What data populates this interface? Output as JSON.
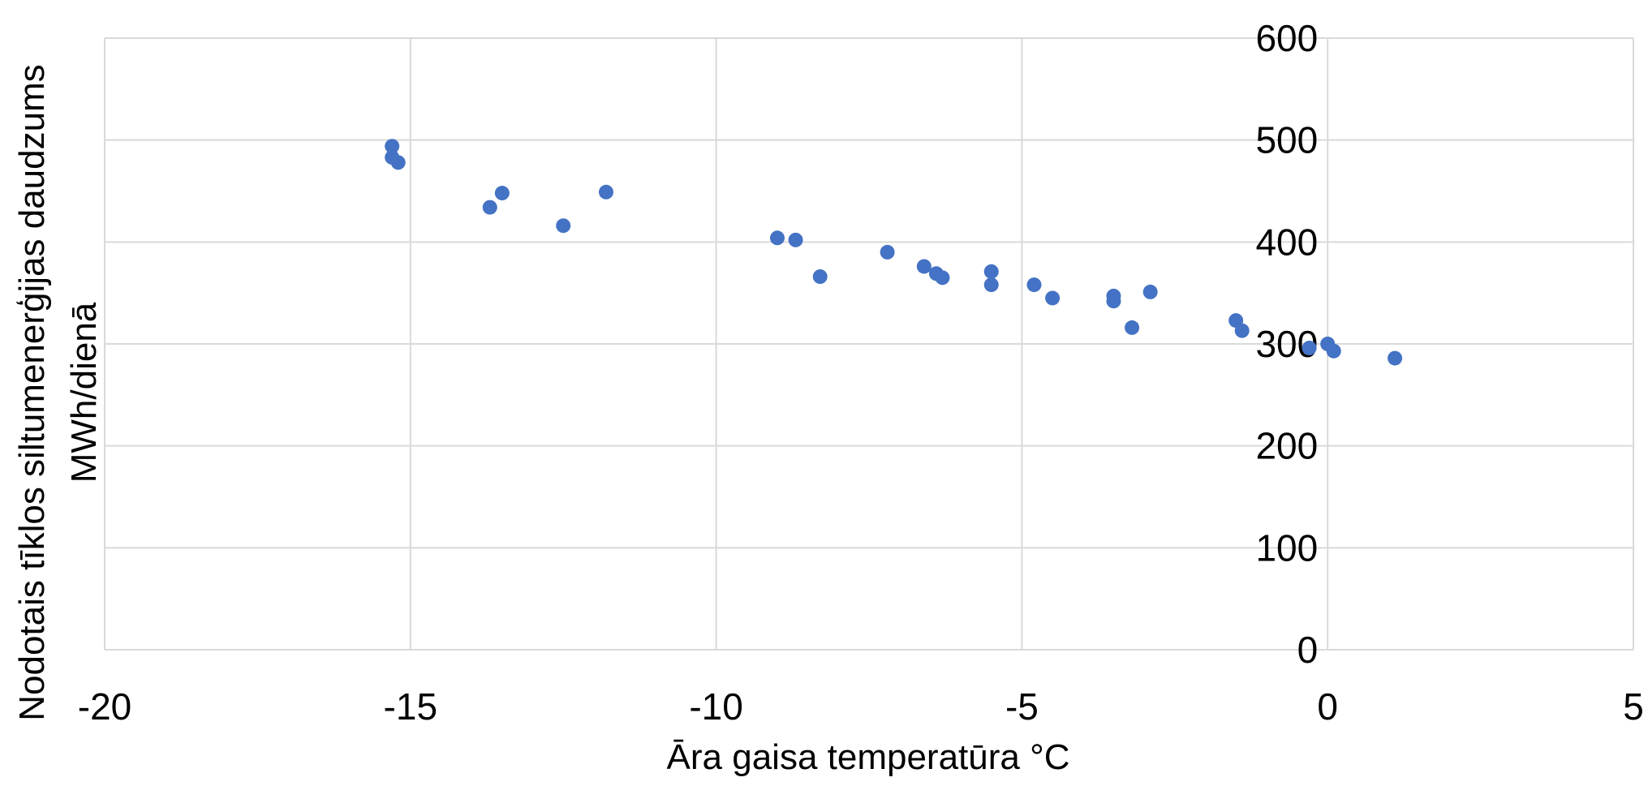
{
  "chart_data": {
    "type": "scatter",
    "title": "",
    "xlabel": "Āra gaisa temperatūra °C",
    "ylabel_lines": [
      "Nodotais tīklos siltumenerģijas daudzums",
      "MWh/dienā"
    ],
    "xlim": [
      -20,
      5
    ],
    "ylim": [
      0,
      600
    ],
    "x_ticks": [
      -20,
      -15,
      -10,
      -5,
      0,
      5
    ],
    "y_ticks": [
      0,
      100,
      200,
      300,
      400,
      500,
      600
    ],
    "y_tick_labels": [
      "0",
      "100",
      "200",
      "300",
      "400",
      "500",
      "600"
    ],
    "x_tick_labels": [
      "-20",
      "-15",
      "-10",
      "-5",
      "0",
      "5"
    ],
    "grid": true,
    "legend": "none",
    "y_axis_position": "at x = 0",
    "point_color": "#4472c4",
    "points": [
      {
        "x": -15.3,
        "y": 494
      },
      {
        "x": -15.3,
        "y": 483
      },
      {
        "x": -15.2,
        "y": 478
      },
      {
        "x": -13.7,
        "y": 434
      },
      {
        "x": -13.5,
        "y": 448
      },
      {
        "x": -12.5,
        "y": 416
      },
      {
        "x": -11.8,
        "y": 449
      },
      {
        "x": -9.0,
        "y": 404
      },
      {
        "x": -8.7,
        "y": 402
      },
      {
        "x": -8.3,
        "y": 366
      },
      {
        "x": -7.2,
        "y": 390
      },
      {
        "x": -6.6,
        "y": 376
      },
      {
        "x": -6.4,
        "y": 369
      },
      {
        "x": -6.3,
        "y": 365
      },
      {
        "x": -5.5,
        "y": 371
      },
      {
        "x": -5.5,
        "y": 358
      },
      {
        "x": -4.8,
        "y": 358
      },
      {
        "x": -4.5,
        "y": 345
      },
      {
        "x": -3.5,
        "y": 347
      },
      {
        "x": -3.5,
        "y": 342
      },
      {
        "x": -3.2,
        "y": 316
      },
      {
        "x": -2.9,
        "y": 351
      },
      {
        "x": -1.5,
        "y": 323
      },
      {
        "x": -1.4,
        "y": 313
      },
      {
        "x": -0.3,
        "y": 296
      },
      {
        "x": 0.0,
        "y": 300
      },
      {
        "x": 0.1,
        "y": 293
      },
      {
        "x": 1.1,
        "y": 286
      }
    ]
  }
}
